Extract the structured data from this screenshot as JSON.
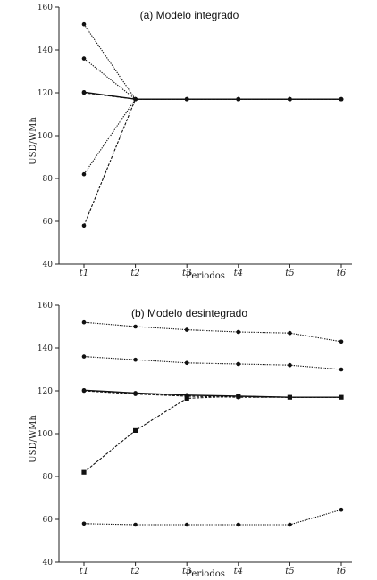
{
  "chart_data": [
    {
      "type": "line",
      "title": "(a) Modelo integrado",
      "xlabel": "Periodos",
      "ylabel": "USD/WMh",
      "categories": [
        "t1",
        "t2",
        "t3",
        "t4",
        "t5",
        "t6"
      ],
      "ylim": [
        40,
        160
      ],
      "yticks": [
        40,
        60,
        80,
        100,
        120,
        140,
        160
      ],
      "grid": false,
      "series": [
        {
          "values": [
            152,
            117,
            117,
            117,
            117,
            117
          ],
          "style": "dotted",
          "marker": "circle"
        },
        {
          "values": [
            136,
            117,
            117,
            117,
            117,
            117
          ],
          "style": "dotted",
          "marker": "circle"
        },
        {
          "values": [
            120.3,
            117,
            117,
            117,
            117,
            117
          ],
          "style": "solid",
          "marker": "circle"
        },
        {
          "values": [
            120,
            117,
            117,
            117,
            117,
            117
          ],
          "style": "dashed",
          "marker": "circle"
        },
        {
          "values": [
            82,
            117,
            117,
            117,
            117,
            117
          ],
          "style": "dotted",
          "marker": "circle"
        },
        {
          "values": [
            58,
            117,
            117,
            117,
            117,
            117
          ],
          "style": "dashed",
          "marker": "circle"
        }
      ]
    },
    {
      "type": "line",
      "title": "(b) Modelo desintegrado",
      "xlabel": "Periodos",
      "ylabel": "USD/WMh",
      "categories": [
        "t1",
        "t2",
        "t3",
        "t4",
        "t5",
        "t6"
      ],
      "ylim": [
        40,
        160
      ],
      "yticks": [
        40,
        60,
        80,
        100,
        120,
        140,
        160
      ],
      "grid": false,
      "series": [
        {
          "values": [
            152,
            150,
            148.5,
            147.5,
            147,
            143
          ],
          "style": "dotted",
          "marker": "circle"
        },
        {
          "values": [
            136,
            134.5,
            133,
            132.5,
            132,
            130
          ],
          "style": "dotted",
          "marker": "circle"
        },
        {
          "values": [
            120.3,
            119,
            118,
            117.5,
            117,
            117
          ],
          "style": "solid",
          "marker": "circle"
        },
        {
          "values": [
            120,
            118.5,
            117.5,
            117,
            117,
            117
          ],
          "style": "dashed",
          "marker": "circle"
        },
        {
          "values": [
            82,
            101.5,
            116.5,
            117.5,
            117,
            117
          ],
          "style": "dashed",
          "marker": "square"
        },
        {
          "values": [
            58,
            57.5,
            57.5,
            57.5,
            57.5,
            64.5
          ],
          "style": "dotted",
          "marker": "circle"
        }
      ]
    }
  ]
}
